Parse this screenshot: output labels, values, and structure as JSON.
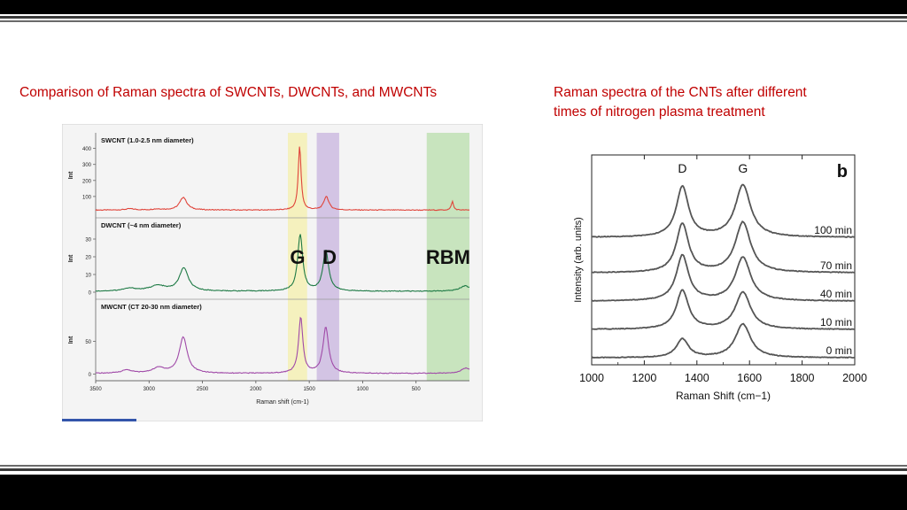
{
  "captions": {
    "left": "Comparison of Raman spectra of SWCNTs, DWCNTs, and MWCNTs",
    "right_line1": "Raman spectra of the CNTs after different",
    "right_line2": "times of nitrogen plasma treatment"
  },
  "colors": {
    "caption": "#c00000",
    "swcnt": "#e0443a",
    "dwcnt": "#1e7a45",
    "mwcnt": "#a04aa8",
    "band_g": "#f4f0b4",
    "band_d": "#cdbbe0",
    "band_rbm": "#bfe0b4",
    "right_curve": "#555555"
  },
  "chart_data": [
    {
      "type": "line",
      "xlabel": "Raman shift (cm-1)",
      "x_ticks": [
        "3500",
        "3000",
        "2500",
        "2000",
        "1500",
        "1000",
        "500"
      ],
      "xlim": [
        3500,
        0
      ],
      "x_reversed": true,
      "bands": [
        {
          "label": "G",
          "range": [
            1700,
            1520
          ]
        },
        {
          "label": "D",
          "range": [
            1430,
            1220
          ]
        },
        {
          "label": "RBM",
          "range": [
            400,
            0
          ]
        }
      ],
      "panels": [
        {
          "label": "SWCNT (1.0-2.5 nm diameter)",
          "ylabel": "Int",
          "y_ticks": [
            "400",
            "300",
            "200",
            "100"
          ],
          "ylim": [
            0,
            420
          ],
          "baseline": 15,
          "peaks": [
            {
              "center": 1590,
              "width": 16,
              "height": 400
            },
            {
              "center": 1340,
              "width": 28,
              "height": 85
            },
            {
              "center": 2680,
              "width": 40,
              "height": 80
            },
            {
              "center": 160,
              "width": 12,
              "height": 55
            },
            {
              "center": 3180,
              "width": 50,
              "height": 8
            },
            {
              "center": 2920,
              "width": 60,
              "height": 6
            }
          ]
        },
        {
          "label": "DWCNT (~4 nm diameter)",
          "ylabel": "Int",
          "y_ticks": [
            "30",
            "20",
            "10",
            "0"
          ],
          "ylim": [
            -1,
            35
          ],
          "baseline": 0.5,
          "peaks": [
            {
              "center": 1585,
              "width": 28,
              "height": 32
            },
            {
              "center": 1345,
              "width": 32,
              "height": 23
            },
            {
              "center": 2675,
              "width": 50,
              "height": 13
            },
            {
              "center": 2920,
              "width": 90,
              "height": 3
            },
            {
              "center": 3180,
              "width": 80,
              "height": 1.5
            },
            {
              "center": 40,
              "width": 60,
              "height": 3
            }
          ]
        },
        {
          "label": "MWCNT (CT 20-30 nm diameter)",
          "ylabel": "Int",
          "y_ticks": [
            "50",
            "0"
          ],
          "ylim": [
            -2,
            95
          ],
          "baseline": 1,
          "peaks": [
            {
              "center": 1580,
              "width": 24,
              "height": 85
            },
            {
              "center": 1345,
              "width": 32,
              "height": 70
            },
            {
              "center": 2680,
              "width": 45,
              "height": 55
            },
            {
              "center": 2910,
              "width": 70,
              "height": 8
            },
            {
              "center": 3210,
              "width": 60,
              "height": 5
            },
            {
              "center": 30,
              "width": 60,
              "height": 8
            }
          ]
        }
      ],
      "annotations": [
        "G",
        "D",
        "RBM"
      ]
    },
    {
      "type": "line",
      "panel_letter": "b",
      "xlabel": "Raman Shift (cm−1)",
      "ylabel": "Intensity (arb. units)",
      "xlim": [
        1000,
        2000
      ],
      "x_ticks": [
        1000,
        1200,
        1400,
        1600,
        1800,
        2000
      ],
      "peak_labels": [
        {
          "text": "D",
          "x": 1345
        },
        {
          "text": "G",
          "x": 1575
        }
      ],
      "series": [
        {
          "name": "0 min",
          "d_height": 0.55,
          "g_height": 1.0
        },
        {
          "name": "10 min",
          "d_height": 1.15,
          "g_height": 1.1
        },
        {
          "name": "40 min",
          "d_height": 1.35,
          "g_height": 1.3
        },
        {
          "name": "70 min",
          "d_height": 1.45,
          "g_height": 1.5
        },
        {
          "name": "100 min",
          "d_height": 1.5,
          "g_height": 1.55
        }
      ],
      "peak_centers": {
        "d": 1345,
        "g": 1575
      }
    }
  ]
}
